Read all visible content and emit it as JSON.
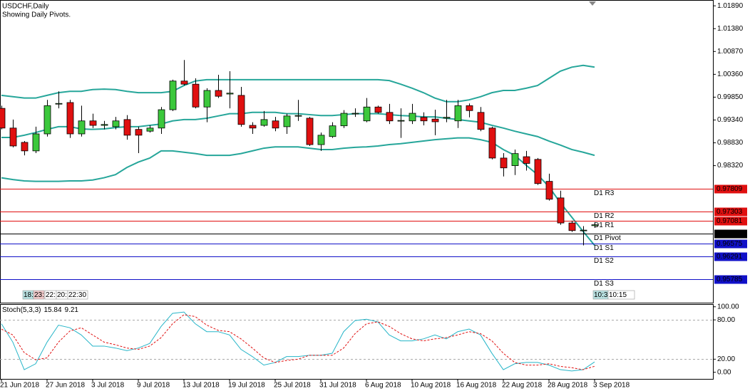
{
  "chart_data": [
    {
      "type": "candlestick",
      "title": "USDCHF,Daily",
      "subtitle": "Showing Daily Pivots.",
      "categories": [
        "21 Jun 2018",
        null,
        null,
        null,
        "27 Jun 2018",
        null,
        null,
        null,
        "3 Jul 2018",
        null,
        null,
        null,
        "9 Jul 2018",
        null,
        null,
        null,
        "13 Jul 2018",
        null,
        null,
        null,
        "19 Jul 2018",
        null,
        null,
        null,
        "25 Jul 2018",
        null,
        null,
        null,
        "31 Jul 2018",
        null,
        null,
        null,
        "6 Aug 2018",
        null,
        null,
        null,
        "10 Aug 2018",
        null,
        null,
        null,
        "16 Aug 2018",
        null,
        null,
        null,
        "22 Aug 2018",
        null,
        null,
        null,
        "28 Aug 2018",
        null,
        null,
        null,
        "3 Sep 2018"
      ],
      "open": [
        0.996,
        0.9916,
        0.9884,
        0.9865,
        0.9903,
        0.997,
        0.9973,
        0.9903,
        0.9932,
        0.9922,
        0.9919,
        0.9935,
        0.9913,
        0.9909,
        0.9916,
        0.9957,
        1.0021,
        1.0014,
        0.9963,
        1.0,
        0.9992,
        0.9989,
        0.9922,
        0.9922,
        0.9932,
        0.9919,
        0.9943,
        0.9938,
        0.9879,
        0.9897,
        0.9921,
        0.9948,
        0.9932,
        0.9963,
        0.9951,
        0.9932,
        0.9932,
        0.994,
        0.9936,
        0.9938,
        0.9932,
        0.9966,
        0.9951,
        0.9916,
        0.9849,
        0.9832,
        0.9852,
        0.9846,
        0.9797,
        0.976,
        0.9704,
        0.9687,
        0.9698
      ],
      "high": [
        0.9966,
        0.9935,
        0.9887,
        0.9919,
        0.9979,
        0.9998,
        0.9979,
        0.9966,
        0.9948,
        0.9932,
        0.9941,
        0.9945,
        0.9919,
        0.9922,
        0.9963,
        1.0024,
        1.0068,
        1.0027,
        1.0005,
        1.0035,
        1.0043,
        1.0008,
        0.9929,
        0.9954,
        0.9941,
        0.9948,
        0.9979,
        0.9941,
        0.9906,
        0.9929,
        0.9956,
        0.996,
        0.9983,
        0.9966,
        0.997,
        0.996,
        0.997,
        0.9951,
        0.9957,
        0.9979,
        0.9979,
        0.9971,
        0.9963,
        0.9919,
        0.986,
        0.9868,
        0.9865,
        0.9849,
        0.9814,
        0.9776,
        0.9709,
        0.9697,
        0.9706
      ],
      "low": [
        0.9913,
        0.9873,
        0.9855,
        0.986,
        0.9897,
        0.996,
        0.9894,
        0.9897,
        0.9916,
        0.9913,
        0.9913,
        0.989,
        0.986,
        0.9906,
        0.9903,
        0.9954,
        1.0011,
        0.996,
        0.9929,
        0.9983,
        0.996,
        0.9919,
        0.9903,
        0.9919,
        0.9909,
        0.9903,
        0.9932,
        0.9876,
        0.9865,
        0.9894,
        0.9916,
        0.9941,
        0.9929,
        0.9948,
        0.9925,
        0.9894,
        0.9925,
        0.9922,
        0.99,
        0.9929,
        0.9916,
        0.994,
        0.9909,
        0.9846,
        0.9808,
        0.9811,
        0.9821,
        0.9789,
        0.9754,
        0.97,
        0.9684,
        0.9654,
        0.9693
      ],
      "close": [
        0.9916,
        0.9876,
        0.9865,
        0.9903,
        0.9966,
        0.9971,
        0.9903,
        0.9932,
        0.9922,
        0.9924,
        0.9932,
        0.99,
        0.99,
        0.9916,
        0.9957,
        1.0021,
        1.0014,
        0.9963,
        1.0,
        0.9987,
        0.9994,
        0.9924,
        0.9916,
        0.9935,
        0.9916,
        0.9943,
        0.9944,
        0.9879,
        0.99,
        0.9921,
        0.9949,
        0.9949,
        0.9963,
        0.9951,
        0.9932,
        0.9933,
        0.9949,
        0.9932,
        0.993,
        0.994,
        0.9966,
        0.9955,
        0.9913,
        0.9849,
        0.9827,
        0.9859,
        0.9837,
        0.9792,
        0.9757,
        0.9704,
        0.9687,
        0.9688,
        0.97
      ],
      "bull_color": "#3cc83c",
      "bear_color": "#e01010",
      "bands": {
        "color": "#26a69a",
        "upper": [
          0.9989,
          0.9986,
          0.9983,
          0.9983,
          0.9989,
          0.9995,
          0.9998,
          0.9998,
          1.0002,
          1.0003,
          1.0002,
          0.9998,
          0.9995,
          0.9995,
          0.9995,
          0.9998,
          1.0011,
          1.0021,
          1.0024,
          1.0024,
          1.0024,
          1.0024,
          1.0024,
          1.0024,
          1.0024,
          1.0024,
          1.0024,
          1.0024,
          1.0024,
          1.0024,
          1.0024,
          1.0024,
          1.0024,
          1.0024,
          1.0022,
          1.0014,
          1.0005,
          0.9995,
          0.9983,
          0.9975,
          0.9975,
          0.9979,
          0.9986,
          0.9995,
          1.0,
          1.0,
          1.0005,
          1.0011,
          1.0027,
          1.0043,
          1.0052,
          1.0056,
          1.0052
        ],
        "middle": [
          0.9895,
          0.9895,
          0.99,
          0.9906,
          0.9913,
          0.9919,
          0.9919,
          0.9914,
          0.9913,
          0.9914,
          0.9917,
          0.9919,
          0.9919,
          0.9922,
          0.9925,
          0.9932,
          0.9935,
          0.9935,
          0.9938,
          0.9943,
          0.9948,
          0.9948,
          0.9951,
          0.9951,
          0.9951,
          0.9948,
          0.9948,
          0.9946,
          0.9944,
          0.9944,
          0.9946,
          0.9948,
          0.9948,
          0.9948,
          0.9946,
          0.9944,
          0.9943,
          0.9941,
          0.9941,
          0.9938,
          0.9935,
          0.9932,
          0.9929,
          0.9922,
          0.9916,
          0.9909,
          0.9903,
          0.9897,
          0.9887,
          0.9878,
          0.9868,
          0.9862,
          0.9855
        ],
        "lower": [
          0.9805,
          0.9801,
          0.9798,
          0.9797,
          0.9797,
          0.9797,
          0.9798,
          0.9798,
          0.98,
          0.9805,
          0.9812,
          0.9828,
          0.984,
          0.9849,
          0.9865,
          0.9865,
          0.9862,
          0.9859,
          0.9855,
          0.9855,
          0.9855,
          0.9859,
          0.9865,
          0.9871,
          0.9874,
          0.9874,
          0.9874,
          0.9871,
          0.9868,
          0.9868,
          0.9871,
          0.9873,
          0.9874,
          0.9876,
          0.9879,
          0.9881,
          0.9884,
          0.9887,
          0.989,
          0.9892,
          0.9894,
          0.9894,
          0.989,
          0.9884,
          0.9868,
          0.9855,
          0.9833,
          0.9812,
          0.9785,
          0.9749,
          0.9717,
          0.9685,
          0.9654
        ]
      },
      "ylim": [
        0.9553,
        1.0202
      ],
      "yticks": [
        {
          "value": 1.0189,
          "label": "1.01890"
        },
        {
          "value": 1.0138,
          "label": "1.01380"
        },
        {
          "value": 1.0087,
          "label": "1.00870"
        },
        {
          "value": 1.0036,
          "label": "1.00360"
        },
        {
          "value": 0.9985,
          "label": "0.99850"
        },
        {
          "value": 0.9934,
          "label": "0.99340"
        },
        {
          "value": 0.9883,
          "label": "0.98830"
        },
        {
          "value": 0.9832,
          "label": "0.98320"
        }
      ],
      "levels": [
        {
          "label": "D1 R3",
          "value": 0.97809,
          "color": "#e01010"
        },
        {
          "label": "D1 R2",
          "value": 0.97303,
          "color": "#e01010"
        },
        {
          "label": "D1 R1",
          "value": 0.97081,
          "color": "#e01010"
        },
        {
          "label": "D1 Pivot",
          "value": 0.96797,
          "color": "#000000"
        },
        {
          "label": "D1 S1",
          "value": 0.96575,
          "color": "#1010c8"
        },
        {
          "label": "D1 S2",
          "value": 0.96291,
          "color": "#1010c8"
        },
        {
          "label": "D1 S3",
          "value": 0.95785,
          "color": "#1010c8"
        }
      ],
      "session_labels_left": [
        "18:",
        "23:",
        "22:",
        "20:",
        "22:30"
      ],
      "session_labels_right": [
        "10:3",
        "10:15"
      ]
    },
    {
      "type": "line",
      "title": "Stoch(5,3,3)",
      "series": [
        {
          "color": "#26b5c8",
          "values": [
            74,
            46,
            4,
            13,
            46,
            72,
            68,
            57,
            40,
            40,
            37,
            33,
            37,
            44,
            70,
            90,
            92,
            74,
            62,
            62,
            57,
            35,
            24,
            11,
            15,
            24,
            24,
            26,
            26,
            29,
            62,
            79,
            81,
            77,
            57,
            48,
            48,
            51,
            57,
            51,
            62,
            66,
            57,
            29,
            4,
            13,
            15,
            15,
            11,
            4,
            2,
            4,
            15.84
          ]
        },
        {
          "color": "#e01010",
          "dashed": true,
          "values": [
            66,
            57,
            30,
            19,
            22,
            46,
            63,
            68,
            57,
            46,
            42,
            37,
            35,
            40,
            53,
            74,
            88,
            85,
            72,
            64,
            62,
            51,
            37,
            22,
            15,
            18,
            20,
            26,
            26,
            26,
            37,
            59,
            74,
            77,
            70,
            59,
            51,
            48,
            51,
            53,
            57,
            62,
            59,
            48,
            29,
            15,
            11,
            11,
            13,
            9,
            7,
            4,
            9.21
          ]
        }
      ],
      "ylim": [
        -9,
        103
      ],
      "yticks": [
        {
          "value": 100,
          "label": "100.00"
        },
        {
          "value": 80,
          "label": "80.00"
        },
        {
          "value": 20,
          "label": "20.00"
        },
        {
          "value": 0,
          "label": "0.00"
        }
      ],
      "levels": [
        80,
        20
      ]
    }
  ]
}
